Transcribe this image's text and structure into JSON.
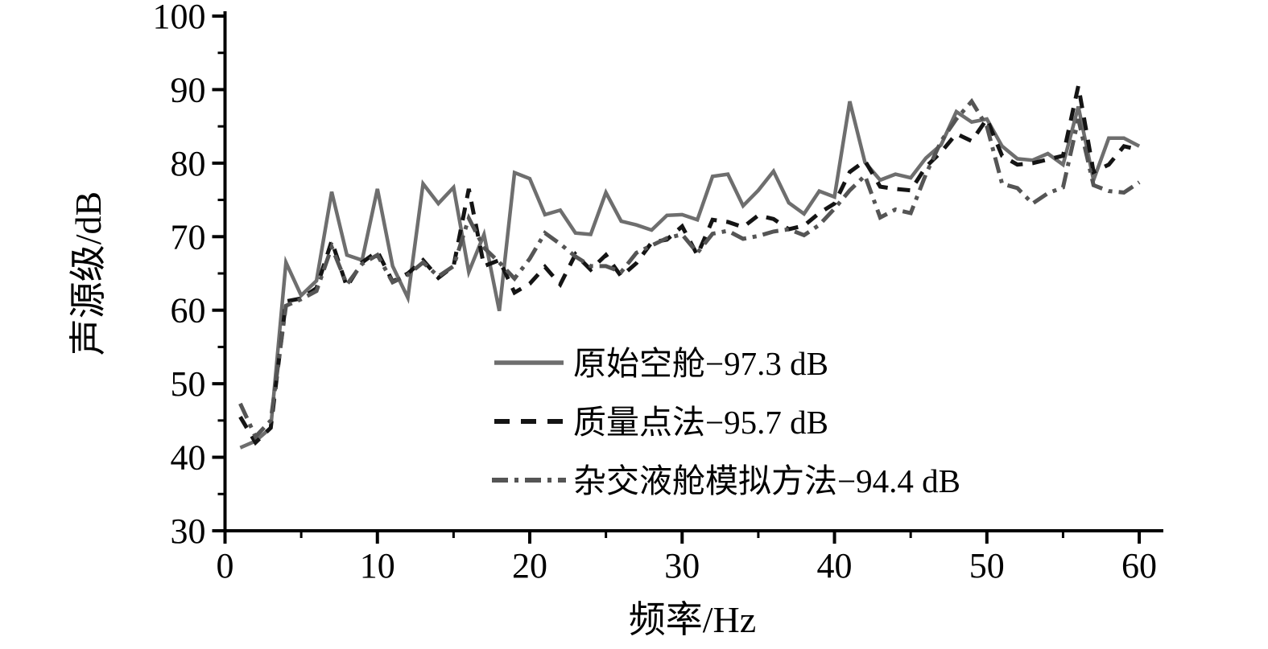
{
  "figure": {
    "background_color": "#ffffff",
    "axis_color": "#000000",
    "text_color": "#000000"
  },
  "chart_data": {
    "type": "line",
    "title": "",
    "xlabel": "频率/Hz",
    "ylabel": "声源级/dB",
    "xlim": [
      0,
      61.5
    ],
    "ylim": [
      30,
      100
    ],
    "x_ticks_major": [
      0,
      10,
      20,
      30,
      40,
      50,
      60
    ],
    "x_ticks_minor": [
      5,
      15,
      25,
      35,
      45,
      55
    ],
    "y_ticks_major": [
      30,
      40,
      50,
      60,
      70,
      80,
      90,
      100
    ],
    "y_ticks_minor": [
      35,
      45,
      55,
      65,
      75,
      85,
      95
    ],
    "grid": false,
    "legend_position": "inside-lower-center",
    "x": [
      1,
      2,
      3,
      4,
      5,
      6,
      7,
      8,
      9,
      10,
      11,
      12,
      13,
      14,
      15,
      16,
      17,
      18,
      19,
      20,
      21,
      22,
      23,
      24,
      25,
      26,
      27,
      28,
      29,
      30,
      31,
      32,
      33,
      34,
      35,
      36,
      37,
      38,
      39,
      40,
      41,
      42,
      43,
      44,
      45,
      46,
      47,
      48,
      49,
      50,
      51,
      52,
      53,
      54,
      55,
      56,
      57,
      58,
      59,
      60
    ],
    "series": [
      {
        "name": "原始空舱−97.3 dB",
        "style": "solid",
        "color": "#6e6e6e",
        "values": [
          41.3,
          42.2,
          44.0,
          66.5,
          62.0,
          64.0,
          76.1,
          67.5,
          66.8,
          76.5,
          66.0,
          61.7,
          77.2,
          74.5,
          76.7,
          65.2,
          70.3,
          59.9,
          78.7,
          77.9,
          73.0,
          73.6,
          70.5,
          70.3,
          76.0,
          72.1,
          71.6,
          70.9,
          72.9,
          73.0,
          72.3,
          78.2,
          78.5,
          74.2,
          76.3,
          78.9,
          74.6,
          73.1,
          76.2,
          75.4,
          88.4,
          80.1,
          77.7,
          78.5,
          78.0,
          80.7,
          82.5,
          87.0,
          85.6,
          86.0,
          82.3,
          80.6,
          80.4,
          81.3,
          79.8,
          87.7,
          77.7,
          83.4,
          83.4,
          82.3
        ]
      },
      {
        "name": "质量点法−95.7 dB",
        "style": "dashed",
        "color": "#141414",
        "values": [
          45.5,
          42.0,
          44.0,
          61.2,
          61.6,
          63.0,
          69.4,
          63.2,
          66.5,
          68.0,
          63.9,
          65.0,
          66.8,
          64.4,
          66.0,
          76.5,
          66.0,
          66.8,
          62.4,
          63.6,
          65.9,
          63.5,
          67.6,
          65.5,
          67.5,
          64.6,
          66.4,
          69.2,
          69.6,
          71.4,
          67.5,
          72.3,
          72.0,
          71.3,
          72.9,
          72.4,
          71.0,
          71.5,
          73.2,
          74.5,
          78.8,
          80.3,
          76.8,
          76.5,
          76.3,
          79.5,
          81.5,
          84.0,
          83.0,
          86.0,
          81.0,
          79.8,
          80.0,
          80.5,
          81.0,
          90.5,
          78.8,
          79.8,
          82.3,
          81.8
        ]
      },
      {
        "name": "杂交液舱模拟方法−94.4 dB",
        "style": "dash-dot",
        "color": "#555555",
        "values": [
          47.3,
          42.8,
          45.0,
          60.6,
          61.5,
          62.6,
          68.6,
          63.5,
          66.3,
          67.5,
          63.8,
          64.8,
          66.5,
          64.6,
          66.0,
          72.5,
          68.5,
          66.5,
          64.3,
          67.0,
          70.5,
          69.0,
          67.3,
          66.0,
          66.0,
          65.2,
          67.8,
          68.8,
          69.8,
          70.3,
          67.8,
          70.4,
          70.8,
          69.7,
          70.1,
          70.7,
          71.0,
          70.2,
          71.6,
          73.8,
          76.3,
          78.3,
          72.6,
          73.7,
          73.2,
          78.5,
          83.0,
          86.0,
          88.4,
          85.0,
          77.2,
          76.6,
          74.5,
          75.9,
          76.7,
          86.0,
          77.0,
          76.2,
          76.0,
          77.4
        ]
      }
    ]
  }
}
